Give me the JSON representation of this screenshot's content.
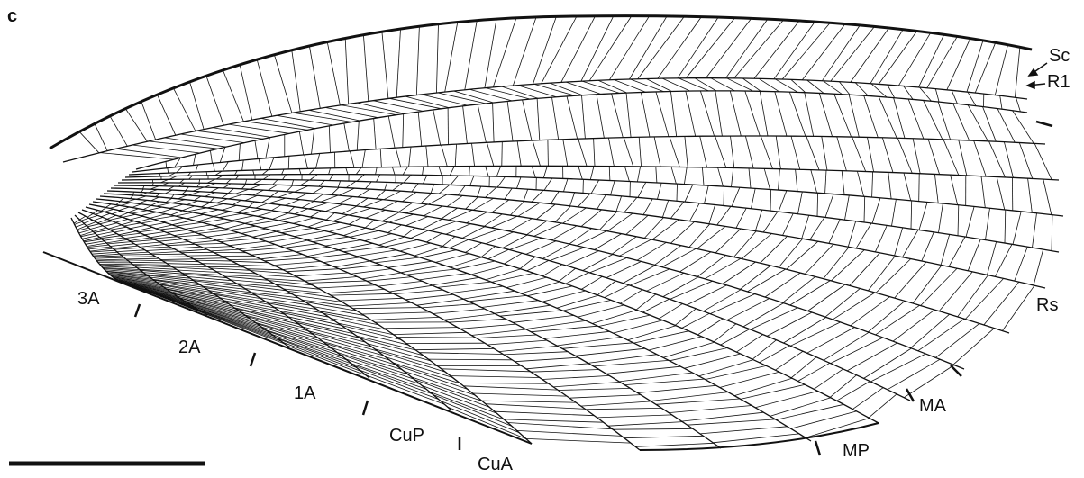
{
  "panel_label": "c",
  "vein_labels": [
    "Sc",
    "R1",
    "Rs",
    "3A",
    "2A",
    "1A",
    "CuP",
    "CuA",
    "MP",
    "MA"
  ]
}
